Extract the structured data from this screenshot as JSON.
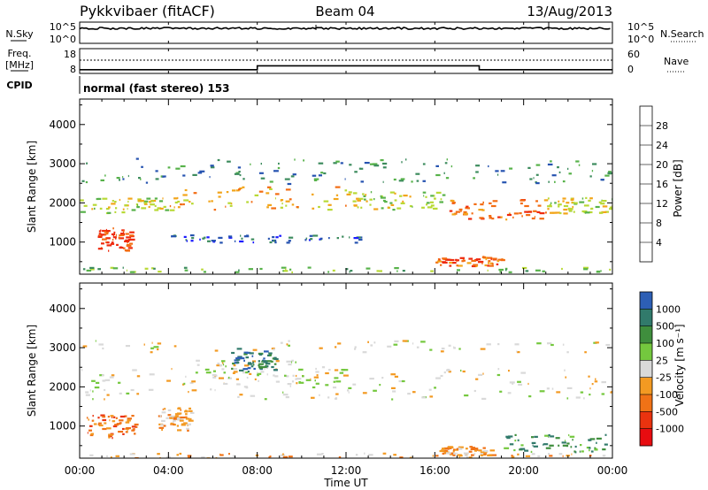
{
  "header": {
    "station": "Pykkvibaer (fitACF)",
    "beam": "Beam 04",
    "date": "13/Aug/2013"
  },
  "nsky_panel": {
    "left_label": "N.Sky",
    "right_label": "N.Search",
    "tick_top": "10^5",
    "tick_bottom": "10^0",
    "right_tick_top": "10^5",
    "right_tick_bottom": "10^0"
  },
  "freq_panel": {
    "left_label_1": "Freq.",
    "left_label_2": "[MHz]",
    "right_label": "Nave",
    "left_ticks": [
      "18",
      "8"
    ],
    "right_ticks": [
      "60",
      "0"
    ],
    "freq_steps": [
      {
        "t": 0,
        "v": 10.2
      },
      {
        "t": 8,
        "v": 11.8
      },
      {
        "t": 18,
        "v": 10.2
      },
      {
        "t": 24,
        "v": 10.2
      }
    ]
  },
  "cpid": {
    "label": "CPID",
    "text": "normal (fast stereo) 153"
  },
  "x_axis": {
    "label": "Time UT",
    "ticks": [
      "00:00",
      "04:00",
      "08:00",
      "12:00",
      "16:00",
      "20:00",
      "00:00"
    ],
    "range": [
      0,
      24
    ]
  },
  "colors": {
    "white": "#ffffff",
    "black": "#000000",
    "ground_scatter": "#bdbdbd"
  },
  "chart_data": [
    {
      "type": "heatmap",
      "name": "power",
      "ylabel": "Slant Range [km]",
      "ylim": [
        180,
        4650
      ],
      "yticks": [
        1000,
        2000,
        3000,
        4000
      ],
      "colorbar_label": "Power [dB]",
      "colorbar_ticks": [
        "4",
        "8",
        "12",
        "16",
        "20",
        "24",
        "28"
      ],
      "colorbar_colors": [
        "#1a1aff",
        "#2653b0",
        "#3d8c5e",
        "#57b24a",
        "#b8d935",
        "#f2a51a",
        "#f36d13",
        "#ee2a0e"
      ],
      "regions": [
        {
          "t": [
            0,
            24
          ],
          "r": [
            2500,
            3150
          ],
          "level": 2
        },
        {
          "t": [
            0,
            4.5
          ],
          "r": [
            1750,
            2150
          ],
          "level": 4
        },
        {
          "t": [
            4,
            12
          ],
          "r": [
            1850,
            2450
          ],
          "level": 5
        },
        {
          "t": [
            12,
            16.5
          ],
          "r": [
            1850,
            2300
          ],
          "level": 4
        },
        {
          "t": [
            16.5,
            21
          ],
          "r": [
            1600,
            2100
          ],
          "level": 6
        },
        {
          "t": [
            21,
            24
          ],
          "r": [
            1750,
            2150
          ],
          "level": 4
        },
        {
          "t": [
            0.8,
            2.3
          ],
          "r": [
            800,
            1400
          ],
          "level": 7
        },
        {
          "t": [
            16,
            19
          ],
          "r": [
            400,
            650
          ],
          "level": 6
        },
        {
          "t": [
            0,
            24
          ],
          "r": [
            250,
            380
          ],
          "level": 3
        },
        {
          "t": [
            4,
            13
          ],
          "r": [
            1000,
            1200
          ],
          "level": 1
        }
      ]
    },
    {
      "type": "heatmap",
      "name": "velocity",
      "ylabel": "Slant Range [km]",
      "ylim": [
        180,
        4650
      ],
      "yticks": [
        1000,
        2000,
        3000,
        4000
      ],
      "colorbar_label": "Velocity [m s⁻¹]",
      "colorbar_ticks": [
        "1000",
        "500",
        "100",
        "25",
        "-25",
        "-100",
        "-500",
        "-1000"
      ],
      "colorbar_colors": [
        "#2d5fb5",
        "#317a6b",
        "#3f8e3d",
        "#74c83e",
        "#d9d9d9",
        "#f39a22",
        "#f07216",
        "#ea330f",
        "#e80c10"
      ],
      "regions": [
        {
          "t": [
            0,
            24
          ],
          "r": [
            1700,
            2500
          ],
          "level": 4
        },
        {
          "t": [
            5,
            12
          ],
          "r": [
            2100,
            2700
          ],
          "level": 4
        },
        {
          "t": [
            0,
            24
          ],
          "r": [
            2900,
            3200
          ],
          "level": 4
        },
        {
          "t": [
            0.3,
            2.5
          ],
          "r": [
            700,
            1300
          ],
          "level": 6
        },
        {
          "t": [
            3.5,
            5
          ],
          "r": [
            900,
            1500
          ],
          "level": 5
        },
        {
          "t": [
            6.8,
            8.8
          ],
          "r": [
            2400,
            3000
          ],
          "level": 1
        },
        {
          "t": [
            16.2,
            18.5
          ],
          "r": [
            250,
            500
          ],
          "level": 5
        },
        {
          "t": [
            19,
            24
          ],
          "r": [
            350,
            800
          ],
          "level": 2
        },
        {
          "t": [
            0,
            24
          ],
          "r": [
            200,
            330
          ],
          "level": 5
        }
      ]
    }
  ]
}
